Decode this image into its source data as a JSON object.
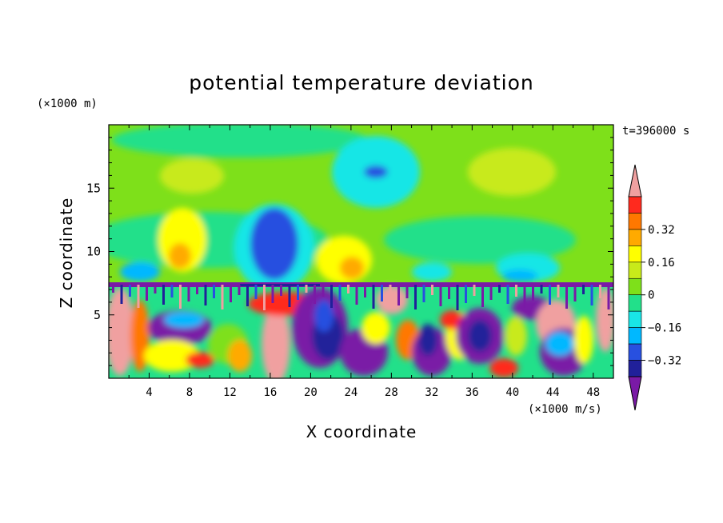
{
  "chart_data": {
    "type": "heatmap",
    "title": "potential temperature deviation",
    "xlabel": "X coordinate",
    "ylabel": "Z coordinate",
    "x_unit": "(×1000 m/s)",
    "y_unit": "(×1000 m)",
    "time_label": "t=396000 s",
    "xlim": [
      0,
      50
    ],
    "ylim": [
      0,
      20
    ],
    "x_ticks": [
      "4",
      "8",
      "12",
      "16",
      "20",
      "24",
      "28",
      "32",
      "36",
      "40",
      "44",
      "48"
    ],
    "y_ticks": [
      "5",
      "10",
      "15"
    ],
    "colorbar": {
      "levels": [
        -0.48,
        -0.4,
        -0.32,
        -0.24,
        -0.16,
        -0.08,
        0,
        0.08,
        0.16,
        0.24,
        0.32,
        0.4,
        0.48
      ],
      "labels": [
        "0.32",
        "0.16",
        "0",
        "−0.16",
        "−0.32"
      ],
      "colors": [
        "#7a1aa6",
        "#20209a",
        "#2850e0",
        "#00b8ff",
        "#19e6e6",
        "#22e08a",
        "#7ee01a",
        "#c8ea1a",
        "#ffff00",
        "#ffaa00",
        "#ff7800",
        "#ff2a1e",
        "#f0a0a0"
      ],
      "extend": "both"
    },
    "regions": [
      {
        "desc": "upper layer background",
        "x": [
          0,
          50
        ],
        "z": [
          7.5,
          20
        ],
        "value": 0.04
      },
      {
        "desc": "upper left anomaly",
        "x": [
          4,
          13
        ],
        "z": [
          9,
          18
        ],
        "value": 0.16
      },
      {
        "desc": "cold plume",
        "x": [
          14,
          19
        ],
        "z": [
          7.5,
          13.5
        ],
        "value": -0.24
      },
      {
        "desc": "upper mid cold",
        "x": [
          21,
          30
        ],
        "z": [
          11,
          19
        ],
        "value": -0.1
      },
      {
        "desc": "warm patch",
        "x": [
          21,
          27
        ],
        "z": [
          7.5,
          11
        ],
        "value": 0.2
      },
      {
        "desc": "upper right anomaly",
        "x": [
          35,
          48
        ],
        "z": [
          12,
          18
        ],
        "value": 0.18
      },
      {
        "desc": "inversion layer",
        "x": [
          0,
          50
        ],
        "z": [
          7,
          7.6
        ],
        "value": -0.4
      },
      {
        "desc": "lower turbulent layer",
        "x": [
          0,
          50
        ],
        "z": [
          0,
          7.2
        ],
        "value": "mixed -0.48 to 0.48"
      }
    ]
  }
}
